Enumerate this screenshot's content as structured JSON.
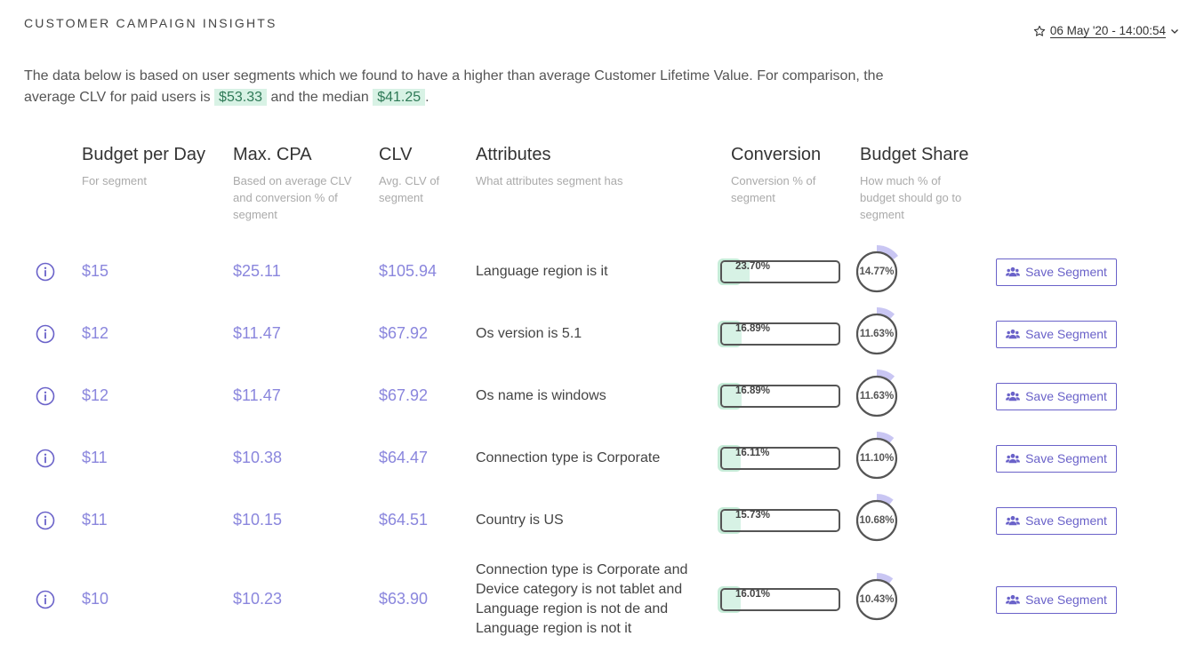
{
  "header": {
    "title": "CUSTOMER CAMPAIGN INSIGHTS",
    "date": "06 May '20 - 14:00:54"
  },
  "intro": {
    "part1": "The data below is based on user segments which we found to have a higher than average Customer Lifetime Value. For comparison, the average CLV for paid users is",
    "avg_clv": "$53.33",
    "part2": "and the median",
    "median_clv": "$41.25",
    "part3": "."
  },
  "columns": {
    "budget": {
      "title": "Budget per Day",
      "sub": "For segment"
    },
    "cpa": {
      "title": "Max. CPA",
      "sub": "Based on average CLV and conversion % of segment"
    },
    "clv": {
      "title": "CLV",
      "sub": "Avg. CLV of segment"
    },
    "attributes": {
      "title": "Attributes",
      "sub": "What attributes segment has"
    },
    "conversion": {
      "title": "Conversion",
      "sub": "Conversion % of segment"
    },
    "share": {
      "title": "Budget Share",
      "sub": "How much % of budget should go to segment"
    }
  },
  "save_label": "Save Segment",
  "icons": {
    "info": "info-circle-icon",
    "users": "users-icon",
    "star": "star-icon",
    "chevron": "chevron-down-icon"
  },
  "accent": "#6a62c9",
  "rows": [
    {
      "budget": "$15",
      "cpa": "$25.11",
      "clv": "$105.94",
      "attr": "Language region is it",
      "conv": "23.70%",
      "conv_val": 23.7,
      "share": "14.77%",
      "share_val": 14.77
    },
    {
      "budget": "$12",
      "cpa": "$11.47",
      "clv": "$67.92",
      "attr": "Os version is 5.1",
      "conv": "16.89%",
      "conv_val": 16.89,
      "share": "11.63%",
      "share_val": 11.63
    },
    {
      "budget": "$12",
      "cpa": "$11.47",
      "clv": "$67.92",
      "attr": "Os name is windows",
      "conv": "16.89%",
      "conv_val": 16.89,
      "share": "11.63%",
      "share_val": 11.63
    },
    {
      "budget": "$11",
      "cpa": "$10.38",
      "clv": "$64.47",
      "attr": "Connection type is Corporate",
      "conv": "16.11%",
      "conv_val": 16.11,
      "share": "11.10%",
      "share_val": 11.1
    },
    {
      "budget": "$11",
      "cpa": "$10.15",
      "clv": "$64.51",
      "attr": "Country is US",
      "conv": "15.73%",
      "conv_val": 15.73,
      "share": "10.68%",
      "share_val": 10.68
    },
    {
      "budget": "$10",
      "cpa": "$10.23",
      "clv": "$63.90",
      "attr": "Connection type is Corporate and Device category is not tablet and Language region is not de and Language region is not it",
      "conv": "16.01%",
      "conv_val": 16.01,
      "share": "10.43%",
      "share_val": 10.43
    }
  ]
}
